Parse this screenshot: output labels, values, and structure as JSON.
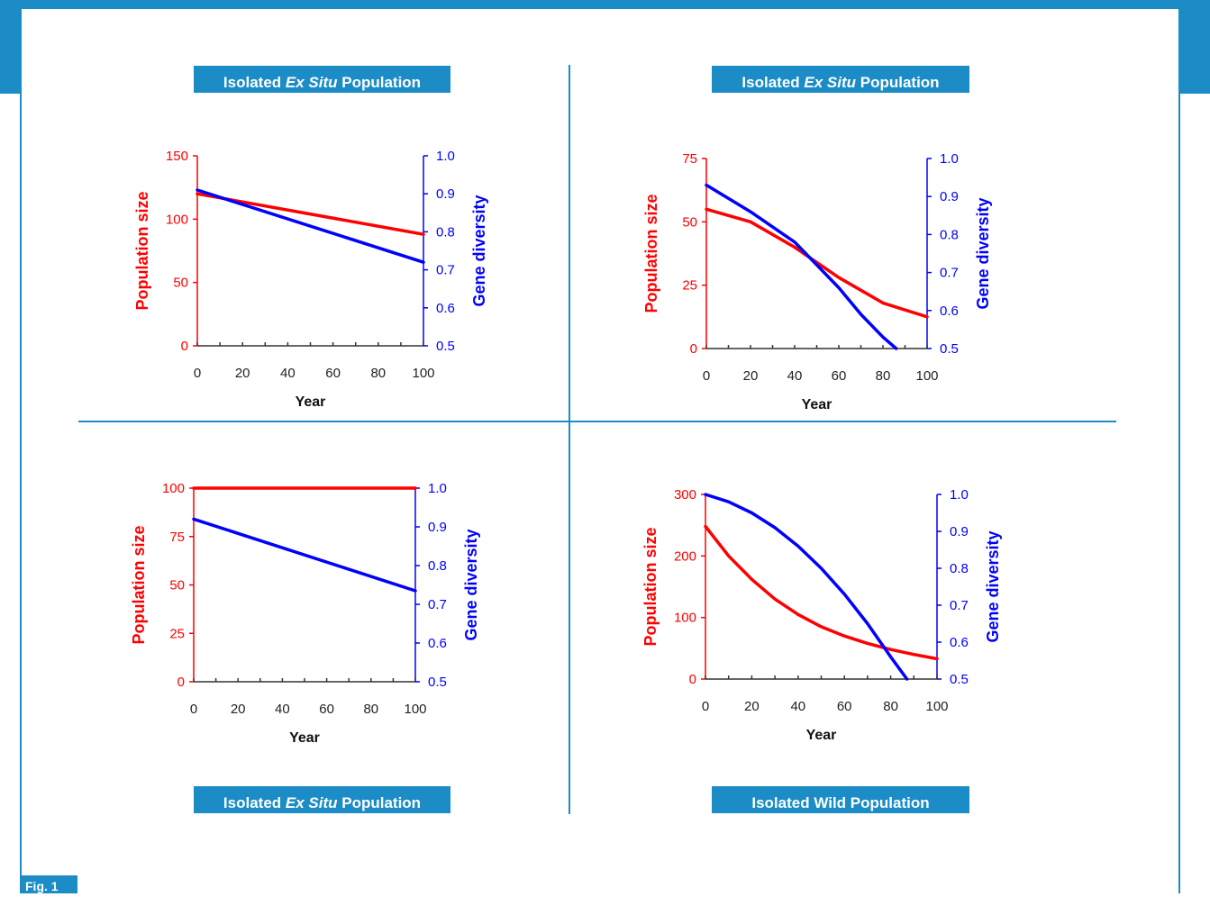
{
  "figure": {
    "label": "Fig. 1",
    "panel_titles": [
      {
        "pre": "Isolated ",
        "em": "Ex Situ",
        "post": " Population"
      },
      {
        "pre": "Isolated ",
        "em": "Ex Situ",
        "post": " Population"
      },
      {
        "pre": "Isolated ",
        "em": "Ex Situ",
        "post": " Population"
      },
      {
        "pre": "Isolated Wild Population",
        "em": "",
        "post": ""
      }
    ]
  },
  "colors": {
    "accent": "#1b8cc6",
    "population": "#ff0000",
    "diversity": "#0000ff"
  },
  "chart_data": [
    {
      "type": "line",
      "xlabel": "Year",
      "ylabel": "Population size",
      "y2label": "Gene diversity",
      "xlim": [
        0,
        100
      ],
      "ylim": [
        0,
        150
      ],
      "y2lim": [
        0.5,
        1.0
      ],
      "xticks": [
        "0",
        "20",
        "40",
        "60",
        "80",
        "100"
      ],
      "yticks": [
        "0",
        "50",
        "100",
        "150"
      ],
      "y2ticks": [
        "0.5",
        "0.6",
        "0.7",
        "0.8",
        "0.9",
        "1.0"
      ],
      "series": [
        {
          "axis": "left",
          "color": "#ff0000",
          "x": [
            0,
            100
          ],
          "y": [
            120,
            88
          ]
        },
        {
          "axis": "right",
          "color": "#0000ff",
          "x": [
            0,
            100
          ],
          "y": [
            0.91,
            0.72
          ]
        }
      ]
    },
    {
      "type": "line",
      "xlabel": "Year",
      "ylabel": "Population size",
      "y2label": "Gene diversity",
      "xlim": [
        0,
        100
      ],
      "ylim": [
        0,
        75
      ],
      "y2lim": [
        0.5,
        1.0
      ],
      "xticks": [
        "0",
        "20",
        "40",
        "60",
        "80",
        "100"
      ],
      "yticks": [
        "0",
        "25",
        "50",
        "75"
      ],
      "y2ticks": [
        "0.5",
        "0.6",
        "0.7",
        "0.8",
        "0.9",
        "1.0"
      ],
      "series": [
        {
          "axis": "left",
          "color": "#ff0000",
          "x": [
            0,
            20,
            40,
            60,
            80,
            100
          ],
          "y": [
            55,
            50,
            40,
            28,
            18,
            12.5
          ]
        },
        {
          "axis": "right",
          "color": "#0000ff",
          "x": [
            0,
            20,
            40,
            60,
            70,
            80,
            86
          ],
          "y": [
            0.93,
            0.86,
            0.78,
            0.66,
            0.59,
            0.53,
            0.5
          ]
        }
      ]
    },
    {
      "type": "line",
      "xlabel": "Year",
      "ylabel": "Population size",
      "y2label": "Gene diversity",
      "xlim": [
        0,
        100
      ],
      "ylim": [
        0,
        100
      ],
      "y2lim": [
        0.5,
        1.0
      ],
      "xticks": [
        "0",
        "20",
        "40",
        "60",
        "80",
        "100"
      ],
      "yticks": [
        "0",
        "25",
        "50",
        "75",
        "100"
      ],
      "y2ticks": [
        "0.5",
        "0.6",
        "0.7",
        "0.8",
        "0.9",
        "1.0"
      ],
      "series": [
        {
          "axis": "left",
          "color": "#ff0000",
          "x": [
            0,
            100
          ],
          "y": [
            100,
            100
          ]
        },
        {
          "axis": "right",
          "color": "#0000ff",
          "x": [
            0,
            100
          ],
          "y": [
            0.92,
            0.735
          ]
        }
      ]
    },
    {
      "type": "line",
      "xlabel": "Year",
      "ylabel": "Population size",
      "y2label": "Gene diversity",
      "xlim": [
        0,
        100
      ],
      "ylim": [
        0,
        300
      ],
      "y2lim": [
        0.5,
        1.0
      ],
      "xticks": [
        "0",
        "20",
        "40",
        "60",
        "80",
        "100"
      ],
      "yticks": [
        "0",
        "100",
        "200",
        "300"
      ],
      "y2ticks": [
        "0.5",
        "0.6",
        "0.7",
        "0.8",
        "0.9",
        "1.0"
      ],
      "series": [
        {
          "axis": "left",
          "color": "#ff0000",
          "x": [
            0,
            10,
            20,
            30,
            40,
            50,
            60,
            70,
            80,
            90,
            100
          ],
          "y": [
            248,
            200,
            162,
            130,
            105,
            85,
            70,
            58,
            48,
            40,
            33
          ]
        },
        {
          "axis": "right",
          "color": "#0000ff",
          "x": [
            0,
            10,
            20,
            30,
            40,
            50,
            60,
            70,
            80,
            87
          ],
          "y": [
            1.0,
            0.98,
            0.95,
            0.91,
            0.86,
            0.8,
            0.73,
            0.65,
            0.56,
            0.5
          ]
        }
      ]
    }
  ]
}
